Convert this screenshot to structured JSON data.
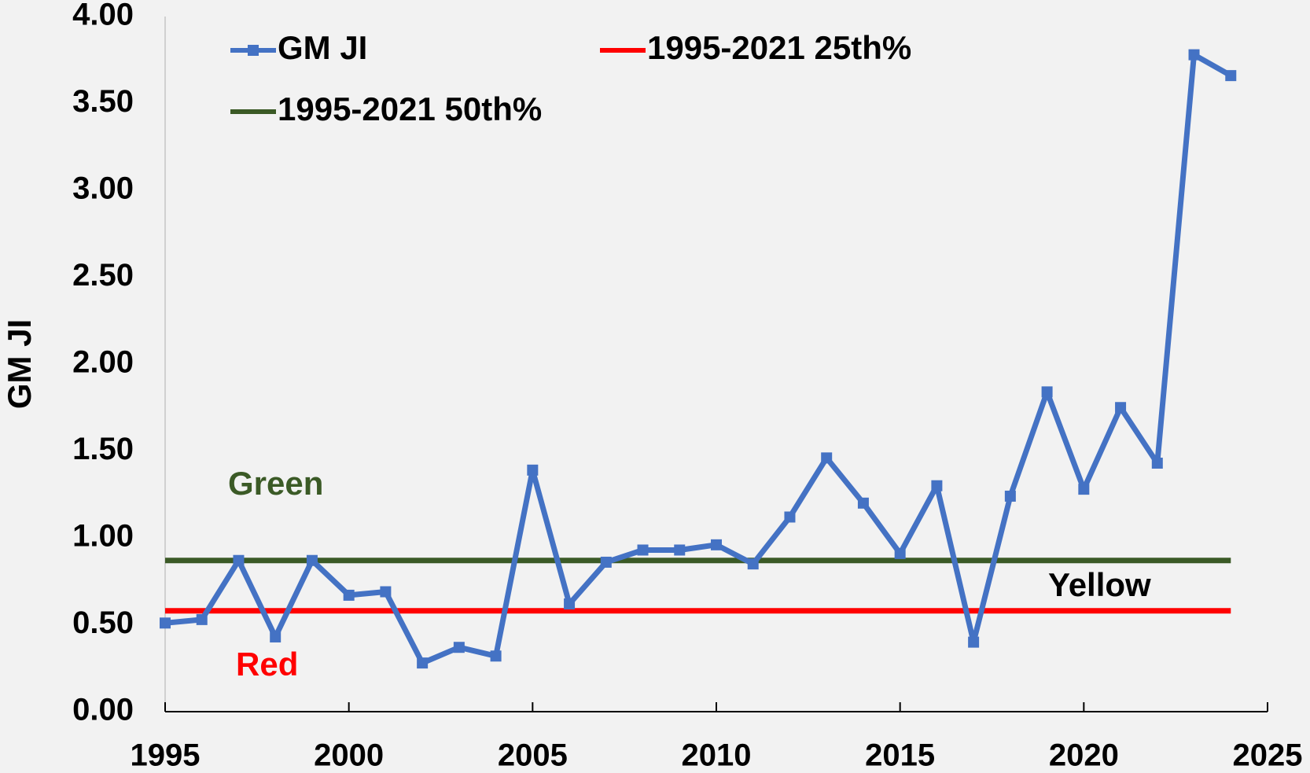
{
  "chart_data": {
    "type": "line",
    "ylabel": "GM JI",
    "x": [
      1995,
      1996,
      1997,
      1998,
      1999,
      2000,
      2001,
      2002,
      2003,
      2004,
      2005,
      2006,
      2007,
      2008,
      2009,
      2010,
      2011,
      2012,
      2013,
      2014,
      2015,
      2016,
      2017,
      2018,
      2019,
      2020,
      2021,
      2022,
      2023,
      2024
    ],
    "series": [
      {
        "name": "GM JI",
        "color": "#4472c4",
        "marker": "square",
        "values": [
          0.51,
          0.53,
          0.87,
          0.43,
          0.87,
          0.67,
          0.69,
          0.28,
          0.37,
          0.32,
          1.39,
          0.62,
          0.86,
          0.93,
          0.93,
          0.96,
          0.85,
          1.12,
          1.46,
          1.2,
          0.91,
          1.3,
          0.4,
          1.24,
          1.84,
          1.28,
          1.75,
          1.43,
          3.78,
          3.66
        ]
      },
      {
        "name": "1995-2021 25th%",
        "color": "#ff0000",
        "values": [
          0.58,
          0.58,
          0.58,
          0.58,
          0.58,
          0.58,
          0.58,
          0.58,
          0.58,
          0.58,
          0.58,
          0.58,
          0.58,
          0.58,
          0.58,
          0.58,
          0.58,
          0.58,
          0.58,
          0.58,
          0.58,
          0.58,
          0.58,
          0.58,
          0.58,
          0.58,
          0.58,
          0.58,
          0.58,
          0.58
        ]
      },
      {
        "name": "1995-2021 50th%",
        "color": "#3b5a26",
        "values": [
          0.87,
          0.87,
          0.87,
          0.87,
          0.87,
          0.87,
          0.87,
          0.87,
          0.87,
          0.87,
          0.87,
          0.87,
          0.87,
          0.87,
          0.87,
          0.87,
          0.87,
          0.87,
          0.87,
          0.87,
          0.87,
          0.87,
          0.87,
          0.87,
          0.87,
          0.87,
          0.87,
          0.87,
          0.87,
          0.87
        ]
      }
    ],
    "annotations": [
      {
        "text": "Green",
        "color": "#3b5a26"
      },
      {
        "text": "Yellow",
        "color": "#000000"
      },
      {
        "text": "Red",
        "color": "#ff0000"
      }
    ],
    "xlim": [
      1995,
      2025
    ],
    "xticks": [
      1995,
      2000,
      2005,
      2010,
      2015,
      2020,
      2025
    ],
    "ylim": [
      0,
      4
    ],
    "yticks": [
      {
        "value": 0,
        "label": "0.00"
      },
      {
        "value": 0.5,
        "label": "0.50"
      },
      {
        "value": 1,
        "label": "1.00"
      },
      {
        "value": 1.5,
        "label": "1.50"
      },
      {
        "value": 2,
        "label": "2.00"
      },
      {
        "value": 2.5,
        "label": "2.50"
      },
      {
        "value": 3,
        "label": "3.00"
      },
      {
        "value": 3.5,
        "label": "3.50"
      },
      {
        "value": 4,
        "label": "4.00"
      }
    ]
  }
}
